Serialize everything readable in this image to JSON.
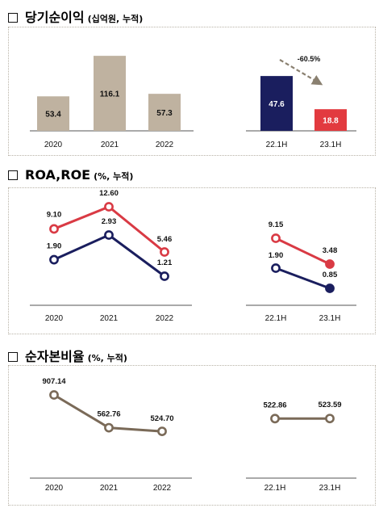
{
  "sections": [
    {
      "title": "당기순이익",
      "subtitle": "(십억원, 누적)"
    },
    {
      "title": "ROA,ROE",
      "subtitle": "(%, 누적)"
    },
    {
      "title": "순자본비율",
      "subtitle": "(%, 누적)"
    }
  ],
  "colors": {
    "annual_bar": "#bfb2a0",
    "h1_22": "#1a1e5e",
    "h1_23": "#e23a3f",
    "roe": "#d93a44",
    "roa": "#1a1e5e",
    "ncr": "#7a6a58",
    "arrow": "#8a8070"
  },
  "chart_data": [
    {
      "type": "bar",
      "title": "당기순이익(십억원, 누적)",
      "panels": [
        {
          "categories": [
            "2020",
            "2021",
            "2022"
          ],
          "values": [
            53.4,
            116.1,
            57.3
          ],
          "labels": [
            "53.4",
            "116.1",
            "57.3"
          ]
        },
        {
          "categories": [
            "22.1H",
            "23.1H"
          ],
          "values": [
            47.6,
            18.8
          ],
          "labels": [
            "47.6",
            "18.8"
          ],
          "annotation": "-60.5%"
        }
      ]
    },
    {
      "type": "line",
      "title": "ROA,ROE(%, 누적)",
      "panels": [
        {
          "categories": [
            "2020",
            "2021",
            "2022"
          ],
          "series": [
            {
              "values": [
                9.1,
                12.6,
                5.46
              ],
              "labels": [
                "9.10",
                "12.60",
                "5.46"
              ]
            },
            {
              "values": [
                1.9,
                2.93,
                1.21
              ],
              "labels": [
                "1.90",
                "2.93",
                "1.21"
              ]
            }
          ]
        },
        {
          "categories": [
            "22.1H",
            "23.1H"
          ],
          "series": [
            {
              "values": [
                9.15,
                3.48
              ],
              "labels": [
                "9.15",
                "3.48"
              ]
            },
            {
              "values": [
                1.9,
                0.85
              ],
              "labels": [
                "1.90",
                "0.85"
              ]
            }
          ]
        }
      ]
    },
    {
      "type": "line",
      "title": "순자본비율(%, 누적)",
      "panels": [
        {
          "categories": [
            "2020",
            "2021",
            "2022"
          ],
          "series": [
            {
              "values": [
                907.14,
                562.76,
                524.7
              ],
              "labels": [
                "907.14",
                "562.76",
                "524.70"
              ]
            }
          ]
        },
        {
          "categories": [
            "22.1H",
            "23.1H"
          ],
          "series": [
            {
              "values": [
                522.86,
                523.59
              ],
              "labels": [
                "522.86",
                "523.59"
              ]
            }
          ]
        }
      ]
    }
  ]
}
